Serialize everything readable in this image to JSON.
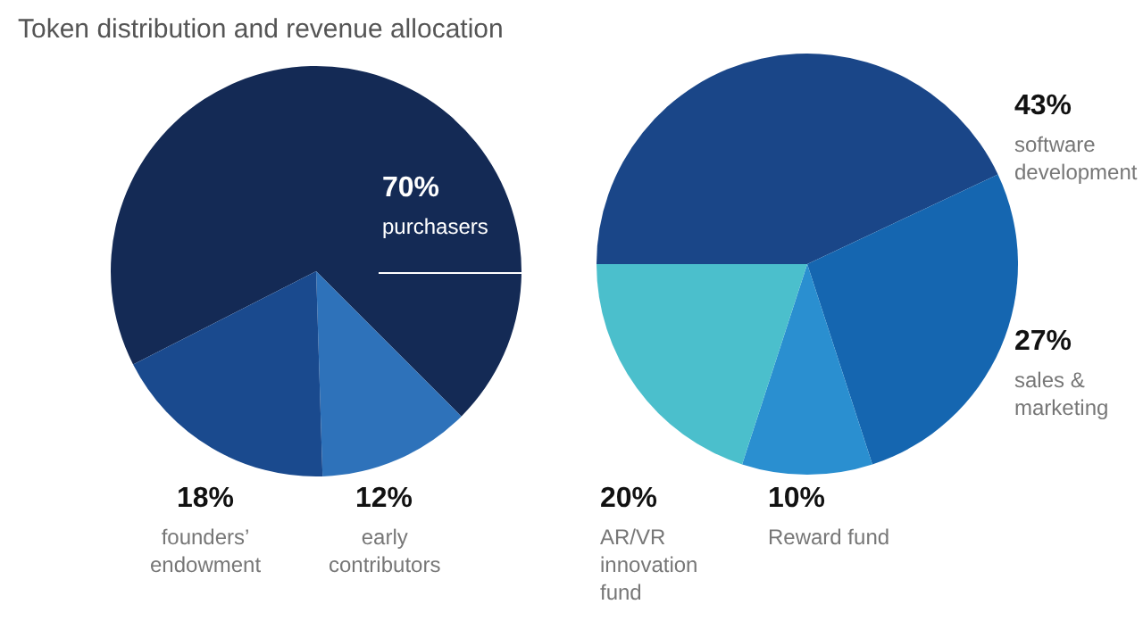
{
  "chart_data": [
    {
      "type": "pie",
      "title": "Token distribution and revenue allocation",
      "categories": [
        "purchasers",
        "early contributors",
        "founders’ endowment"
      ],
      "values": [
        70,
        12,
        18
      ],
      "value_labels": [
        "70%",
        "12%",
        "18%"
      ],
      "colors": [
        "#142a55",
        "#2e72ba",
        "#1a4a8e"
      ],
      "legend": false
    },
    {
      "type": "pie",
      "categories": [
        "software development",
        "sales & marketing",
        "Reward fund",
        "AR/VR innovation fund"
      ],
      "values": [
        43,
        27,
        10,
        20
      ],
      "value_labels": [
        "43%",
        "27%",
        "10%",
        "20%"
      ],
      "colors": [
        "#1a4688",
        "#1566b0",
        "#2a8fd0",
        "#4bbfcc"
      ],
      "legend": false
    }
  ]
}
